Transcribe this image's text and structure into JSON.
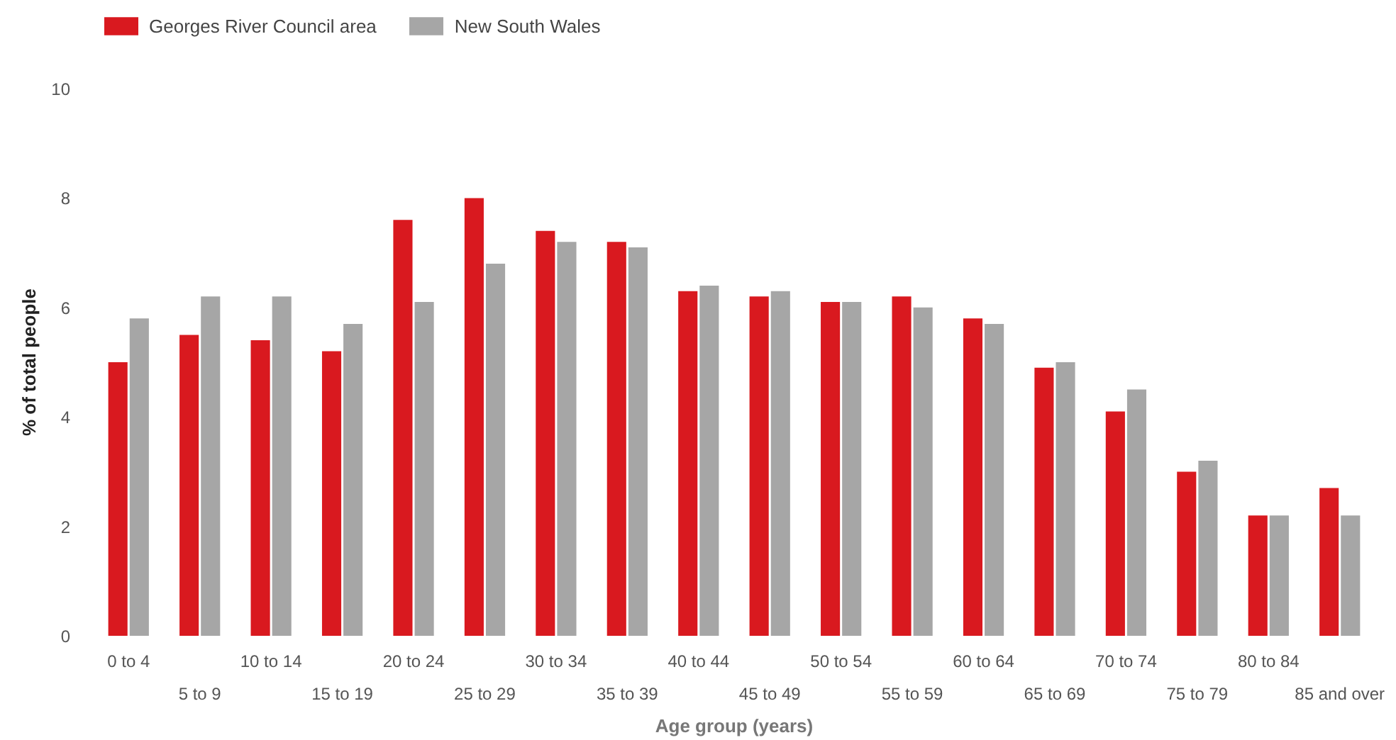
{
  "chart_data": {
    "type": "bar",
    "xlabel": "Age group (years)",
    "ylabel": "% of total people",
    "categories": [
      "0 to 4",
      "5 to 9",
      "10 to 14",
      "15 to 19",
      "20 to 24",
      "25 to 29",
      "30 to 34",
      "35 to 39",
      "40 to 44",
      "45 to 49",
      "50 to 54",
      "55 to 59",
      "60 to 64",
      "65 to 69",
      "70 to 74",
      "75 to 79",
      "80 to 84",
      "85 and over"
    ],
    "series": [
      {
        "name": "Georges River Council area",
        "color": "#d9191f",
        "values": [
          5.0,
          5.5,
          5.4,
          5.2,
          7.6,
          8.0,
          7.4,
          7.2,
          6.3,
          6.2,
          6.1,
          6.2,
          5.8,
          4.9,
          4.1,
          3.0,
          2.2,
          2.7
        ]
      },
      {
        "name": "New South Wales",
        "color": "#a6a6a6",
        "values": [
          5.8,
          6.2,
          6.2,
          5.7,
          6.1,
          6.8,
          7.2,
          7.1,
          6.4,
          6.3,
          6.1,
          6.0,
          5.7,
          5.0,
          4.5,
          3.2,
          2.2,
          2.2
        ]
      }
    ],
    "ylim": [
      0,
      10
    ],
    "yticks": [
      0,
      2,
      4,
      6,
      8,
      10
    ],
    "grid": false,
    "legend": "top left"
  }
}
